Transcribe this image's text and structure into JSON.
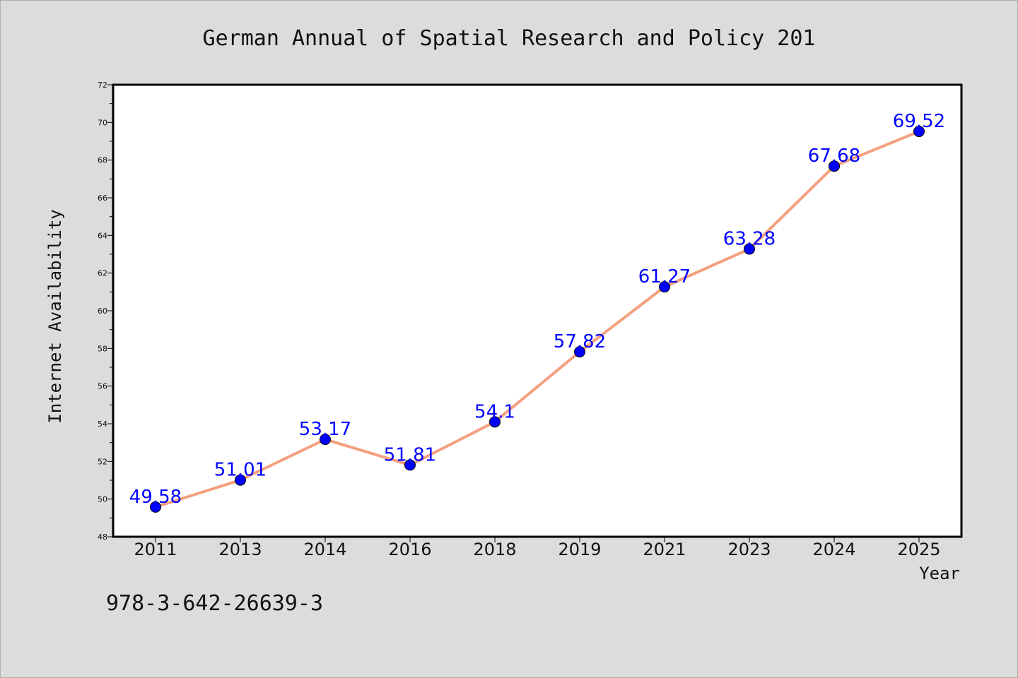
{
  "chart_data": {
    "type": "line",
    "title": "German Annual of Spatial Research and Policy 201",
    "xlabel": "Year",
    "ylabel": "Internet Availability",
    "categories": [
      "2011",
      "2013",
      "2014",
      "2016",
      "2018",
      "2019",
      "2021",
      "2023",
      "2024",
      "2025"
    ],
    "series": [
      {
        "values": [
          49.58,
          51.01,
          53.17,
          51.81,
          54.1,
          57.82,
          61.27,
          63.28,
          67.68,
          69.52
        ],
        "data_labels": [
          "49.58",
          "51.01",
          "53.17",
          "51.81",
          "54.1",
          "57.82",
          "61.27",
          "63.28",
          "67.68",
          "69.52"
        ],
        "line_color": "#f4a07f",
        "marker_color": "#0000ff",
        "label_color": "#0000ff"
      }
    ],
    "ylim": [
      48,
      72
    ],
    "yticks": [
      "48",
      "50",
      "52",
      "54",
      "56",
      "58",
      "60",
      "62",
      "64",
      "66",
      "68",
      "70",
      "72"
    ],
    "grid": false,
    "legend": "none"
  },
  "annotation": {
    "isbn": "978-3-642-26639-3"
  },
  "colors": {
    "background": "#dcdcdc",
    "plot_background": "#ffffff",
    "frame": "#000000"
  }
}
